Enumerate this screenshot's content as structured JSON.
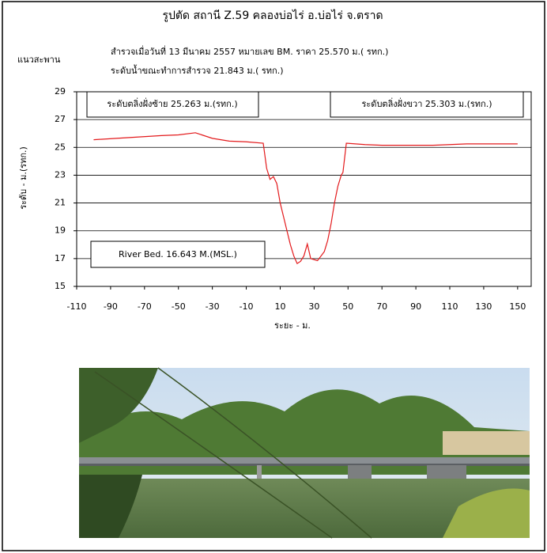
{
  "document": {
    "title": "รูปตัด  สถานี  Z.59  คลองบ่อไร่  อ.บ่อไร่  จ.ตราด",
    "survey_line": "สำรวจเมื่อวันที่  13  มีนาคม  2557  หมายเลข  BM.  ราคา  25.570  ม.( รทก.)",
    "water_line": "ระดับน้ำขณะทำการสำรวจ   21.843  ม.( รทก.)",
    "bridge_label": "แนวสะพาน"
  },
  "chart_data": {
    "type": "line",
    "color": "#e31a1c",
    "x": [
      -100,
      -80,
      -60,
      -50,
      -40,
      -30,
      -20,
      -10,
      0,
      2,
      4,
      6,
      8,
      10,
      12,
      14,
      16,
      18,
      20,
      22,
      24,
      26,
      28,
      32,
      36,
      38,
      40,
      42,
      44,
      46,
      47,
      49,
      60,
      70,
      100,
      120,
      150
    ],
    "values": [
      25.55,
      25.7,
      25.85,
      25.9,
      26.05,
      25.65,
      25.45,
      25.4,
      25.3,
      23.5,
      22.7,
      22.9,
      22.4,
      21.0,
      20.0,
      19.0,
      18.0,
      17.2,
      16.643,
      16.8,
      17.2,
      18.05,
      17.0,
      16.85,
      17.5,
      18.3,
      19.5,
      21.0,
      22.2,
      23.0,
      23.2,
      25.3,
      25.2,
      25.15,
      25.15,
      25.25,
      25.25
    ],
    "xlim": [
      -110,
      158
    ],
    "ylim": [
      15,
      29
    ],
    "xticks": [
      -110,
      -90,
      -70,
      -50,
      -30,
      -10,
      10,
      30,
      50,
      70,
      90,
      110,
      130,
      150
    ],
    "yticks": [
      15,
      17,
      19,
      21,
      23,
      25,
      27,
      29
    ],
    "grid": true,
    "xlabel": "ระยะ - ม.",
    "ylabel": "ระดับ - ม.(รทก.)",
    "annotations": [
      "ระดับตลิ่งฝั่งซ้าย  25.263  ม.(รทก.)",
      "ระดับตลิ่งฝั่งขวา  25.303  ม.(รทก.)",
      "River Bed.  16.643  M.(MSL.)"
    ]
  }
}
